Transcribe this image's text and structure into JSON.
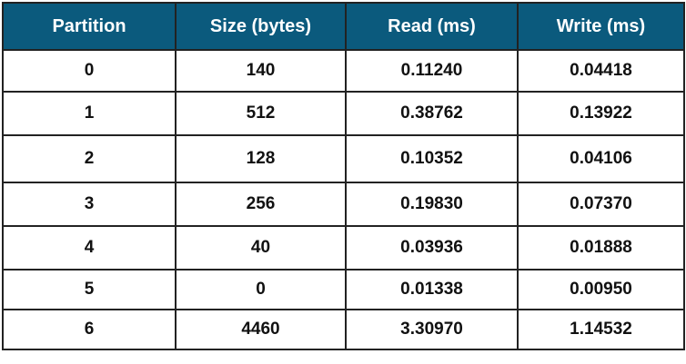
{
  "table": {
    "header_color": "#0b5a7d",
    "columns": [
      "Partition",
      "Size (bytes)",
      "Read (ms)",
      "Write (ms)"
    ],
    "rows": [
      [
        "0",
        "140",
        "0.11240",
        "0.04418"
      ],
      [
        "1",
        "512",
        "0.38762",
        "0.13922"
      ],
      [
        "2",
        "128",
        "0.10352",
        "0.04106"
      ],
      [
        "3",
        "256",
        "0.19830",
        "0.07370"
      ],
      [
        "4",
        "40",
        "0.03936",
        "0.01888"
      ],
      [
        "5",
        "0",
        "0.01338",
        "0.00950"
      ],
      [
        "6",
        "4460",
        "3.30970",
        "1.14532"
      ]
    ]
  }
}
